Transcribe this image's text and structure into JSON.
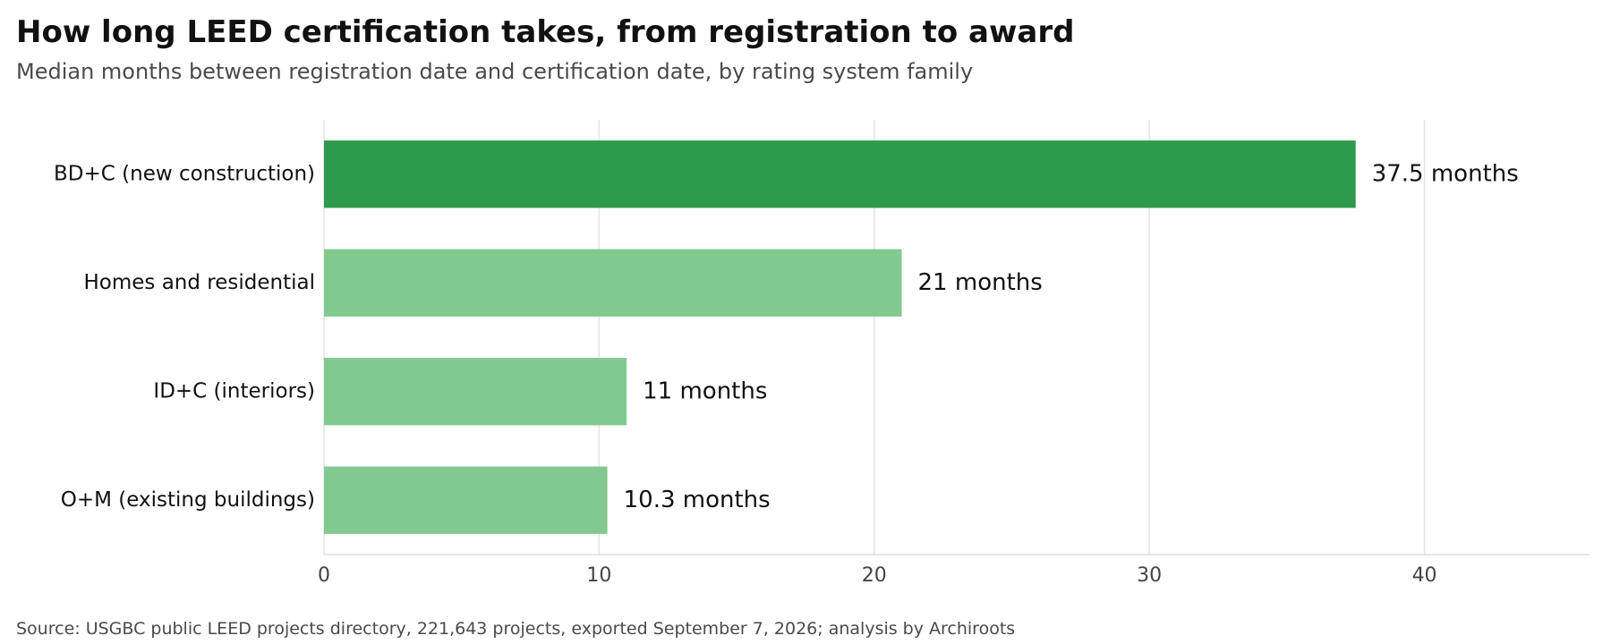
{
  "header": {
    "title": "How long LEED certification takes, from registration to award",
    "subtitle": "Median months between registration date and certification date, by rating system family"
  },
  "footer": {
    "source": "Source: USGBC public LEED projects directory, 221,643 projects, exported September 7, 2026; analysis by Archiroots"
  },
  "chart_data": {
    "type": "bar",
    "orientation": "horizontal",
    "title": "How long LEED certification takes, from registration to award",
    "subtitle": "Median months between registration date and certification date, by rating system family",
    "categories": [
      "BD+C (new construction)",
      "Homes and residential",
      "ID+C (interiors)",
      "O+M (existing buildings)"
    ],
    "values": [
      37.5,
      21,
      11,
      10.3
    ],
    "value_labels": [
      "37.5 months",
      "21 months",
      "11 months",
      "10.3 months"
    ],
    "highlight_index": 0,
    "colors": {
      "highlight": "#2e9a4c",
      "default": "#82c98f",
      "grid": "#e4e4e4",
      "axis": "#dddddd"
    },
    "xlim": [
      0,
      46
    ],
    "xticks": [
      0,
      10,
      20,
      30,
      40
    ],
    "xtick_labels": [
      "0",
      "10",
      "20",
      "30",
      "40"
    ],
    "grid": "vertical",
    "xlabel": "",
    "ylabel": ""
  }
}
